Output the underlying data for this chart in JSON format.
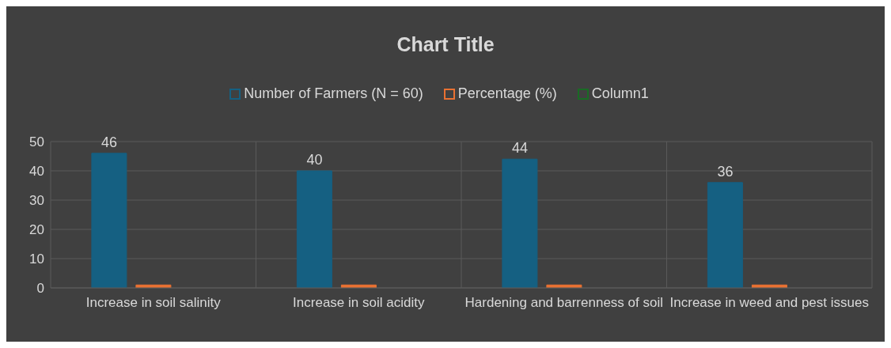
{
  "chart_data": {
    "type": "bar",
    "title": "Chart Title",
    "categories": [
      "Increase in soil salinity",
      "Increase in soil acidity",
      "Hardening and barrenness of soil",
      "Increase in weed and pest issues"
    ],
    "series": [
      {
        "name": "Number of Farmers (N = 60)",
        "color": "#156082",
        "values": [
          46,
          40,
          44,
          36
        ],
        "value_labels": [
          "46",
          "40",
          "44",
          "36"
        ]
      },
      {
        "name": "Percentage (%)",
        "color": "#e97132",
        "values": [
          1,
          1,
          1,
          1
        ]
      },
      {
        "name": "Column1",
        "color": "#196b24",
        "values": [
          null,
          null,
          null,
          null
        ]
      }
    ],
    "ylim": [
      0,
      50
    ],
    "yticks": [
      0,
      10,
      20,
      30,
      40,
      50
    ],
    "grid": true,
    "legend": "top"
  }
}
